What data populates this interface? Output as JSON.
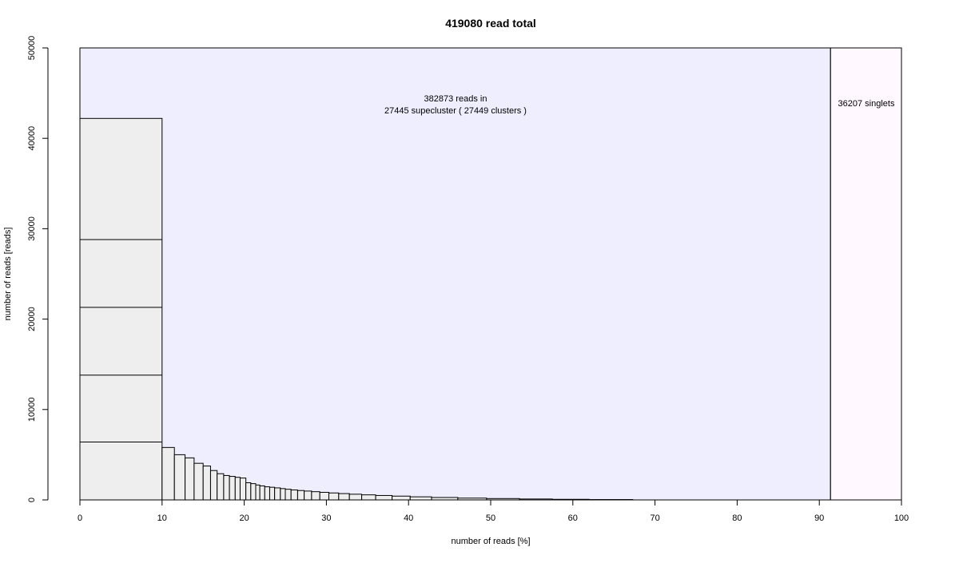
{
  "chart_data": {
    "type": "bar",
    "title": "419080 read total",
    "xlabel": "number of reads [%]",
    "ylabel": "number of reads [reads]",
    "xlim": [
      0,
      100
    ],
    "ylim": [
      0,
      50000
    ],
    "x_ticks": [
      "0",
      "10",
      "20",
      "30",
      "40",
      "50",
      "60",
      "70",
      "80",
      "90",
      "100"
    ],
    "y_ticks": [
      "0",
      "10000",
      "20000",
      "30000",
      "40000",
      "50000"
    ],
    "total_reads": 419080,
    "clustered_reads": 382873,
    "singlet_reads": 36207,
    "singlet_boundary_percent": 91.36,
    "annotations": {
      "clustered_line1": "382873 reads in",
      "clustered_line2": "27445 supecluster ( 27449  clusters )",
      "singlets": "36207 singlets"
    },
    "first_bin": {
      "x_start": 0,
      "x_end": 10,
      "stacked_boundaries": [
        6400,
        13800,
        21300,
        28800,
        42200
      ]
    },
    "bars": [
      [
        10.0,
        11.5,
        5800
      ],
      [
        11.5,
        12.8,
        5000
      ],
      [
        12.8,
        13.9,
        4650
      ],
      [
        13.9,
        15.0,
        4050
      ],
      [
        15.0,
        15.9,
        3750
      ],
      [
        15.9,
        16.7,
        3250
      ],
      [
        16.7,
        17.5,
        2900
      ],
      [
        17.5,
        18.2,
        2700
      ],
      [
        18.2,
        18.9,
        2600
      ],
      [
        18.9,
        19.5,
        2500
      ],
      [
        19.5,
        20.2,
        2420
      ],
      [
        20.2,
        20.8,
        1900
      ],
      [
        20.8,
        21.4,
        1800
      ],
      [
        21.4,
        21.9,
        1650
      ],
      [
        21.9,
        22.5,
        1550
      ],
      [
        22.5,
        23.1,
        1450
      ],
      [
        23.1,
        23.7,
        1400
      ],
      [
        23.7,
        24.4,
        1330
      ],
      [
        24.4,
        25.0,
        1250
      ],
      [
        25.0,
        25.7,
        1180
      ],
      [
        25.7,
        26.5,
        1100
      ],
      [
        26.5,
        27.3,
        1040
      ],
      [
        27.3,
        28.2,
        980
      ],
      [
        28.2,
        29.2,
        910
      ],
      [
        29.2,
        30.3,
        840
      ],
      [
        30.3,
        31.5,
        770
      ],
      [
        31.5,
        32.8,
        700
      ],
      [
        32.8,
        34.3,
        630
      ],
      [
        34.3,
        36.0,
        560
      ],
      [
        36.0,
        38.0,
        490
      ],
      [
        38.0,
        40.2,
        420
      ],
      [
        40.2,
        42.8,
        340
      ],
      [
        42.8,
        46.0,
        270
      ],
      [
        46.0,
        49.5,
        200
      ],
      [
        49.5,
        53.5,
        150
      ],
      [
        53.5,
        57.5,
        100
      ],
      [
        57.5,
        62.0,
        65
      ],
      [
        62.0,
        67.3,
        40
      ]
    ]
  }
}
